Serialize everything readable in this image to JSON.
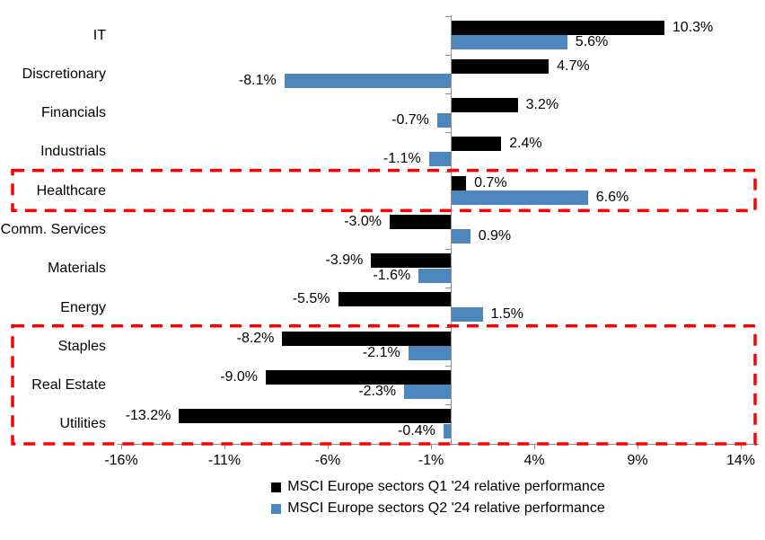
{
  "chart_data": {
    "type": "bar",
    "orientation": "horizontal",
    "categories": [
      "IT",
      "Discretionary",
      "Financials",
      "Industrials",
      "Healthcare",
      "Comm. Services",
      "Materials",
      "Energy",
      "Staples",
      "Real Estate",
      "Utilities"
    ],
    "series": [
      {
        "name": "MSCI Europe sectors Q1 '24 relative performance",
        "color": "#000000",
        "values": [
          10.3,
          4.7,
          3.2,
          2.4,
          0.7,
          -3.0,
          -3.9,
          -5.5,
          -8.2,
          -9.0,
          -13.2
        ],
        "labels": [
          "10.3%",
          "4.7%",
          "3.2%",
          "2.4%",
          "0.7%",
          "-3.0%",
          "-3.9%",
          "-5.5%",
          "-8.2%",
          "-9.0%",
          "-13.2%"
        ]
      },
      {
        "name": "MSCI Europe sectors Q2 '24 relative performance",
        "color": "#4e86be",
        "values": [
          5.6,
          -8.1,
          -0.7,
          -1.1,
          6.6,
          0.9,
          -1.6,
          1.5,
          -2.1,
          -2.3,
          -0.4
        ],
        "labels": [
          "5.6%",
          "-8.1%",
          "-0.7%",
          "-1.1%",
          "6.6%",
          "0.9%",
          "-1.6%",
          "1.5%",
          "-2.1%",
          "-2.3%",
          "-0.4%"
        ]
      }
    ],
    "x_axis": {
      "min": -16,
      "max": 14,
      "tick_values": [
        -16,
        -11,
        -6,
        -1,
        4,
        9,
        14
      ],
      "tick_labels": [
        "-16%",
        "-11%",
        "-6%",
        "-1%",
        "4%",
        "9%",
        "14%"
      ]
    },
    "title": "",
    "xlabel": "",
    "ylabel": "",
    "grid": false,
    "legend_position": "bottom",
    "axis_color": "#8e8e8e",
    "highlights": [
      {
        "name": "healthcare-highlight-box",
        "row_start": 4,
        "row_end": 4,
        "color": "#fe0000"
      },
      {
        "name": "staples-realestate-utilities-highlight-box",
        "row_start": 8,
        "row_end": 10,
        "color": "#fe0000"
      }
    ]
  }
}
